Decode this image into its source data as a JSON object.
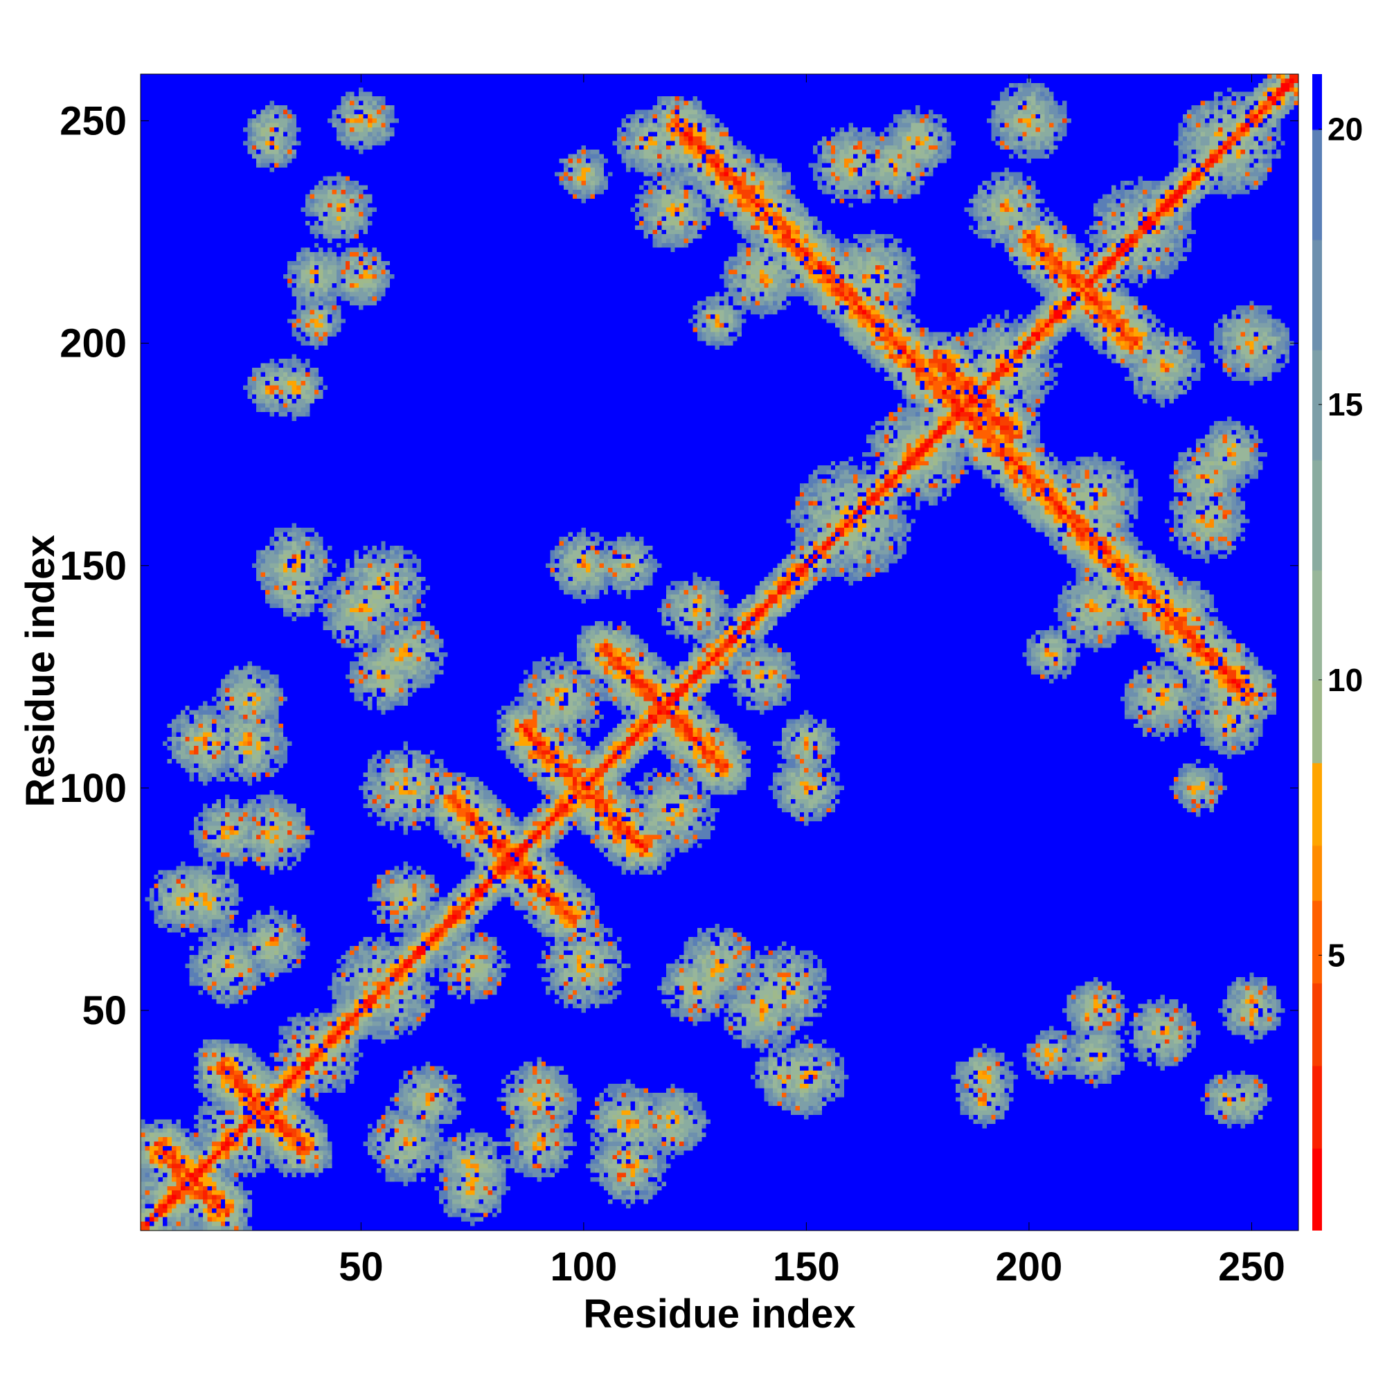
{
  "chart_data": {
    "type": "heatmap",
    "title": "",
    "xlabel": "Residue index",
    "ylabel": "Residue index",
    "n_residues": 260,
    "xlim": [
      1,
      260
    ],
    "ylim": [
      1,
      260
    ],
    "xticks": [
      50,
      100,
      150,
      200,
      250
    ],
    "yticks": [
      50,
      100,
      150,
      200,
      250
    ],
    "xtick_labels": [
      "50",
      "100",
      "150",
      "200",
      "250"
    ],
    "ytick_labels": [
      "50",
      "100",
      "150",
      "200",
      "250"
    ],
    "value_range": [
      0,
      21
    ],
    "colorbar": {
      "ticks": [
        5,
        10,
        15,
        20
      ],
      "tick_labels": [
        "5",
        "10",
        "15",
        "20"
      ],
      "levels": [
        {
          "max": 1.5,
          "color": "#ff0000"
        },
        {
          "max": 3.0,
          "color": "#fa2000"
        },
        {
          "max": 4.5,
          "color": "#f84000"
        },
        {
          "max": 6.0,
          "color": "#ff6000"
        },
        {
          "max": 7.0,
          "color": "#ff8c00"
        },
        {
          "max": 8.5,
          "color": "#ffa500"
        },
        {
          "max": 10.0,
          "color": "#9fb98c"
        },
        {
          "max": 12.0,
          "color": "#98b69a"
        },
        {
          "max": 14.0,
          "color": "#8aaca0"
        },
        {
          "max": 16.0,
          "color": "#7d9fa8"
        },
        {
          "max": 18.0,
          "color": "#6d90ae"
        },
        {
          "max": 20.0,
          "color": "#5a7fb6"
        },
        {
          "max": 21.0,
          "color": "#0000ff"
        }
      ]
    },
    "background_color": "#0000ff",
    "description_of_features": {
      "diagonal": "contact at distance 0 along the main diagonal",
      "antiparallel_strands": [
        {
          "center": [
            118,
            118
          ],
          "from": [
            104,
            132
          ],
          "to": [
            132,
            104
          ]
        },
        {
          "center": [
            100,
            100
          ],
          "from": [
            86,
            114
          ],
          "to": [
            114,
            86
          ]
        },
        {
          "center": [
            85,
            85
          ],
          "from": [
            70,
            98
          ],
          "to": [
            98,
            70
          ]
        },
        {
          "center": [
            188,
            188
          ],
          "from": [
            179,
            197
          ],
          "to": [
            197,
            179
          ]
        },
        {
          "center": [
            213,
            213
          ],
          "from": [
            200,
            224
          ],
          "to": [
            224,
            200
          ]
        },
        {
          "center": [
            185,
            185
          ],
          "from": [
            120,
            250
          ],
          "to": [
            250,
            120
          ]
        },
        {
          "center": [
            28,
            28
          ],
          "from": [
            18,
            38
          ],
          "to": [
            38,
            18
          ]
        },
        {
          "center": [
            12,
            12
          ],
          "from": [
            4,
            20
          ],
          "to": [
            20,
            4
          ]
        }
      ]
    }
  }
}
